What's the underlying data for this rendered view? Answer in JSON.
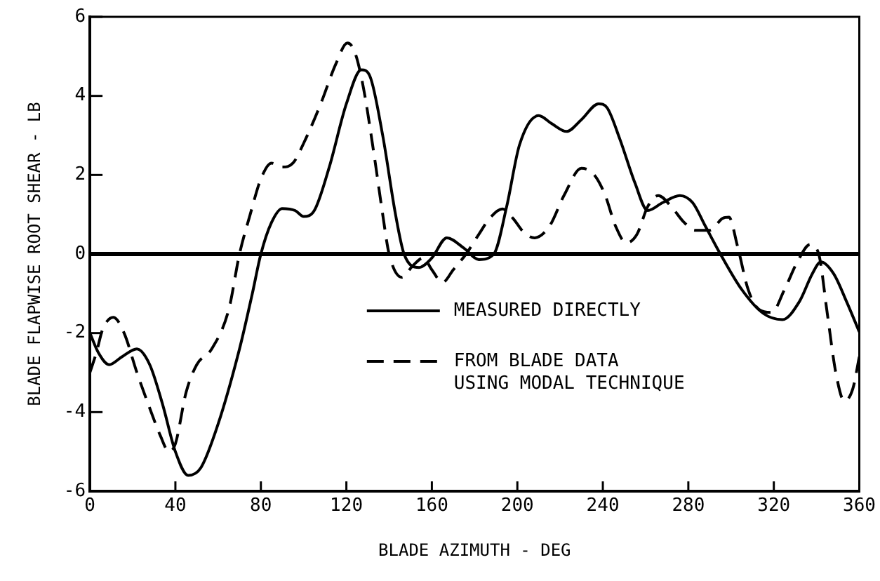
{
  "chart_data": {
    "type": "line",
    "xlabel": "BLADE AZIMUTH - DEG",
    "ylabel": "BLADE FLAPWISE ROOT SHEAR - LB",
    "xlim": [
      0,
      360
    ],
    "xticks": [
      0,
      40,
      80,
      120,
      160,
      200,
      240,
      280,
      320,
      360
    ],
    "ylim": [
      -6,
      6
    ],
    "yticks": [
      -6,
      -4,
      -2,
      0,
      2,
      4,
      6
    ],
    "grid": false,
    "legend": "bottom right",
    "marker": "none",
    "ref_lines": [
      {
        "axis": "y",
        "value": 0,
        "color": "#000000"
      }
    ],
    "series": [
      {
        "name": "MEASURED DIRECTLY",
        "color": "#000000",
        "line_style": "solid",
        "x": [
          0,
          4,
          9,
          15,
          22,
          28,
          34,
          40,
          46,
          52,
          60,
          70,
          76,
          80,
          85,
          90,
          96,
          100,
          105,
          112,
          120,
          127,
          131,
          137,
          143,
          147,
          154,
          160,
          167,
          175,
          182,
          189,
          195,
          201,
          210,
          216,
          223,
          230,
          238,
          242,
          248,
          255,
          261,
          268,
          276,
          282,
          288,
          295,
          305,
          315,
          324,
          332,
          338,
          342,
          348,
          354,
          360
        ],
        "values": [
          -2.0,
          -2.5,
          -2.8,
          -2.6,
          -2.4,
          -2.8,
          -3.8,
          -5.0,
          -5.6,
          -5.4,
          -4.3,
          -2.4,
          -1.0,
          0,
          0.8,
          1.15,
          1.1,
          0.95,
          1.1,
          2.2,
          3.8,
          4.66,
          4.5,
          3.0,
          1.0,
          0,
          -0.34,
          -0.1,
          0.41,
          0.15,
          -0.14,
          0,
          1.2,
          2.76,
          3.5,
          3.3,
          3.1,
          3.4,
          3.8,
          3.7,
          2.9,
          1.8,
          1.1,
          1.3,
          1.48,
          1.3,
          0.7,
          0,
          -0.9,
          -1.5,
          -1.66,
          -1.2,
          -0.5,
          -0.2,
          -0.5,
          -1.2,
          -1.97
        ]
      },
      {
        "name": "FROM BLADE DATA\nUSING MODAL TECHNIQUE",
        "color": "#000000",
        "line_style": "dashed",
        "x": [
          0,
          3,
          6,
          11,
          16,
          22,
          28,
          33,
          37,
          40,
          45,
          50,
          57,
          65,
          70,
          75,
          80,
          85,
          90,
          95,
          100,
          108,
          115,
          120.5,
          124,
          128,
          133,
          137,
          140,
          146,
          151,
          156,
          160,
          165,
          170,
          176,
          182,
          187,
          193,
          198,
          203,
          208,
          215,
          222,
          230,
          236,
          241,
          246,
          251,
          256,
          261,
          266,
          272,
          278,
          283,
          290,
          296,
          299,
          303,
          308,
          313,
          319,
          325,
          331,
          337,
          341,
          345,
          349,
          353,
          357,
          360
        ],
        "values": [
          -3.0,
          -2.5,
          -1.9,
          -1.6,
          -2.0,
          -3.0,
          -3.9,
          -4.6,
          -5.0,
          -4.8,
          -3.5,
          -2.8,
          -2.4,
          -1.4,
          0,
          1.0,
          1.9,
          2.3,
          2.2,
          2.3,
          2.8,
          3.8,
          4.8,
          5.34,
          5.1,
          4.2,
          2.5,
          1.0,
          0,
          -0.59,
          -0.3,
          -0.1,
          -0.4,
          -0.72,
          -0.4,
          0,
          0.5,
          0.9,
          1.14,
          0.9,
          0.55,
          0.41,
          0.7,
          1.5,
          2.17,
          2.0,
          1.5,
          0.7,
          0.28,
          0.5,
          1.2,
          1.48,
          1.2,
          0.8,
          0.6,
          0.6,
          0.9,
          0.93,
          0.2,
          -0.9,
          -1.4,
          -1.48,
          -0.9,
          -0.2,
          0.24,
          0.0,
          -1.5,
          -3.0,
          -3.72,
          -3.4,
          -2.6
        ]
      }
    ]
  }
}
